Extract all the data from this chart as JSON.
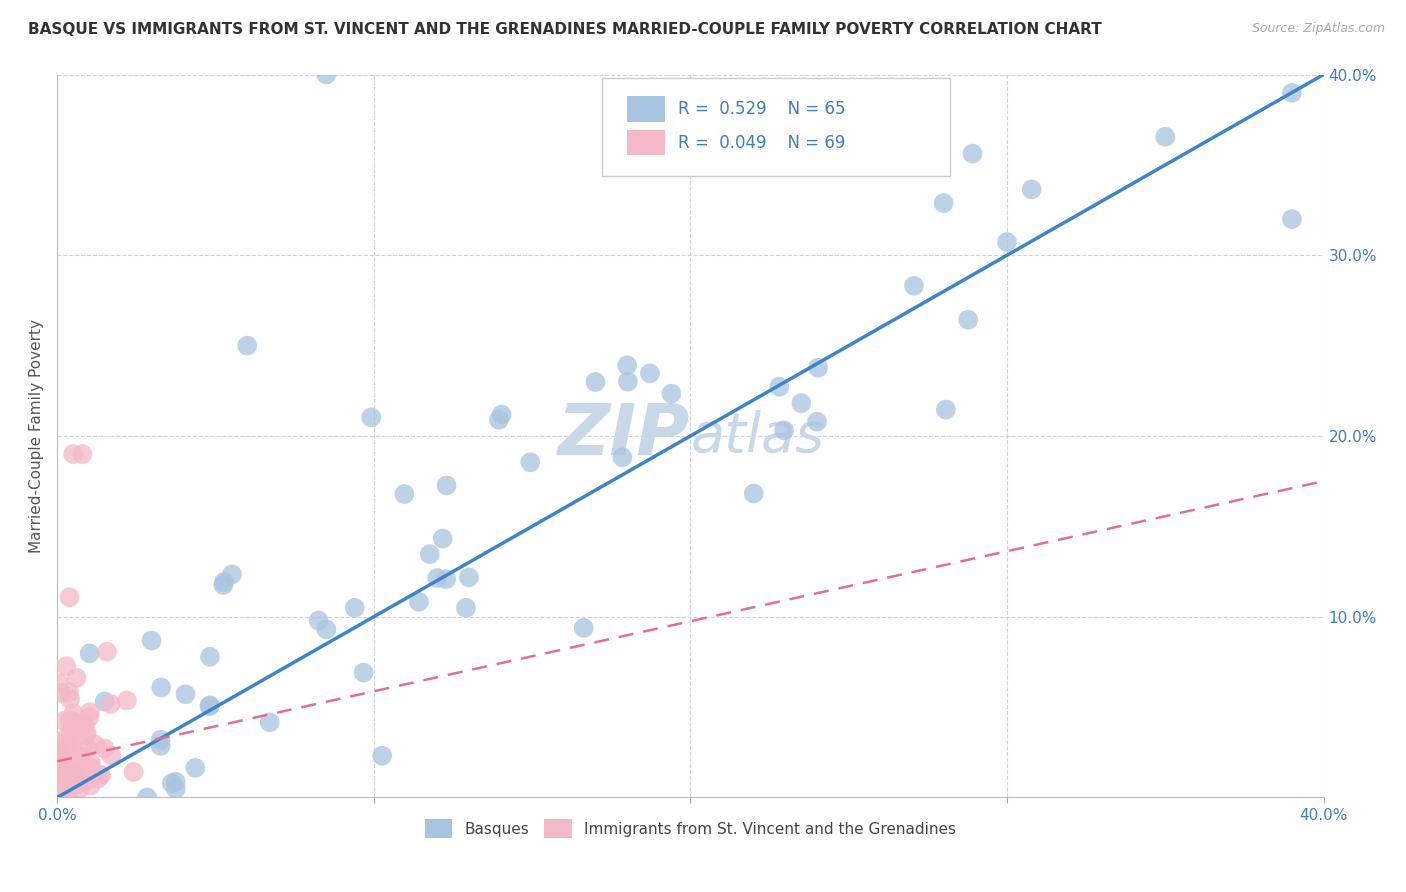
{
  "title": "BASQUE VS IMMIGRANTS FROM ST. VINCENT AND THE GRENADINES MARRIED-COUPLE FAMILY POVERTY CORRELATION CHART",
  "source": "Source: ZipAtlas.com",
  "ylabel": "Married-Couple Family Poverty",
  "xlim": [
    0.0,
    0.4
  ],
  "ylim": [
    0.0,
    0.4
  ],
  "xticks": [
    0.0,
    0.1,
    0.2,
    0.3,
    0.4
  ],
  "yticks": [
    0.0,
    0.1,
    0.2,
    0.3,
    0.4
  ],
  "xtick_labels": [
    "0.0%",
    "",
    "",
    "",
    "40.0%"
  ],
  "ytick_labels_right": [
    "",
    "10.0%",
    "20.0%",
    "30.0%",
    "40.0%"
  ],
  "watermark_zip": "ZIP",
  "watermark_atlas": "atlas",
  "blue_color": "#a8c4e0",
  "pink_color": "#f4b8c8",
  "blue_line_color": "#3d85c8",
  "pink_line_color": "#e07090",
  "legend_text_color": "#3d7ebf",
  "R_blue": 0.529,
  "R_pink": 0.049,
  "N_blue": 65,
  "N_pink": 69,
  "blue_line_x0": 0.0,
  "blue_line_y0": 0.0,
  "blue_line_x1": 0.4,
  "blue_line_y1": 0.4,
  "pink_line_x0": 0.0,
  "pink_line_y0": 0.02,
  "pink_line_x1": 0.4,
  "pink_line_y1": 0.175,
  "background_color": "#ffffff",
  "grid_color": "#c8c8c8",
  "title_fontsize": 11,
  "axis_label_fontsize": 11,
  "tick_fontsize": 11,
  "tick_color": "#3d7ebf",
  "watermark_color": "#c8d8e8",
  "legend_box_color": "#e8eef4"
}
